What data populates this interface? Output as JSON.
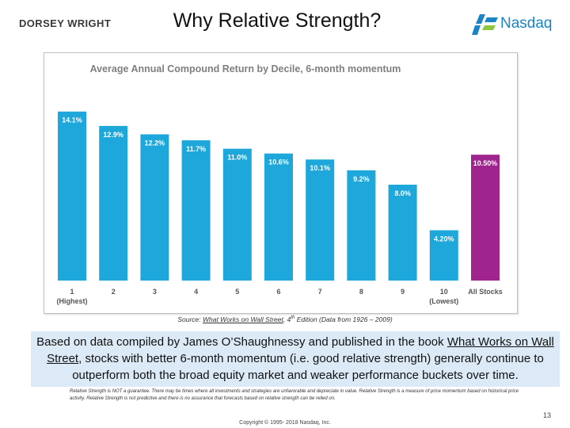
{
  "header": {
    "left_logo": "DORSEY WRIGHT",
    "title": "Why Relative Strength?",
    "right_logo": "Nasdaq"
  },
  "chart_data": {
    "type": "bar",
    "title": "Average Annual Compound Return by Decile, 6-month momentum",
    "categories": [
      "1 (Highest)",
      "2",
      "3",
      "4",
      "5",
      "6",
      "7",
      "8",
      "9",
      "10 (Lowest)",
      "All Stocks"
    ],
    "category_lines": [
      [
        "1",
        "(Highest)"
      ],
      [
        "2"
      ],
      [
        "3"
      ],
      [
        "4"
      ],
      [
        "5"
      ],
      [
        "6"
      ],
      [
        "7"
      ],
      [
        "8"
      ],
      [
        "9"
      ],
      [
        "10",
        "(Lowest)"
      ],
      [
        "All Stocks"
      ]
    ],
    "values": [
      14.1,
      12.9,
      12.2,
      11.7,
      11.0,
      10.6,
      10.1,
      9.2,
      8.0,
      4.2,
      10.5
    ],
    "value_labels": [
      "14.1%",
      "12.9%",
      "12.2%",
      "11.7%",
      "11.0%",
      "10.6%",
      "10.1%",
      "9.2%",
      "8.0%",
      "4.20%",
      "10.50%"
    ],
    "xlabel": "",
    "ylabel": "",
    "ylim": [
      0,
      16
    ],
    "grid": false,
    "legend": "none",
    "colors": {
      "decile": "#1ea7da",
      "all_stocks": "#a0248e",
      "label_text": "#ffffff",
      "title_text": "#7f7f7f",
      "axis_text": "#555555"
    }
  },
  "source": {
    "prefix": "Source: ",
    "book": "What Works on Wall Street",
    "edition": ", 4",
    "superscript": "th",
    "suffix": " Edition (Data from 1926 – 2009)"
  },
  "callout": {
    "part1": "Based on data compiled by James O’Shaughnessy and published in the book ",
    "book": "What Works on Wall Street",
    "part2": ", stocks with better 6-month momentum (i.e. good relative strength) generally continue to outperform both the broad equity market and weaker performance buckets over time.",
    "background": "#dbeaf6"
  },
  "disclaimer": "Relative Strength is NOT a guarantee. There may be times where all investments and strategies are unfavorable and depreciate in value. Relative Strength is a measure of price momentum based on historical price activity. Relative Strength is not predictive and there is no assurance that forecasts based on relative strength can be relied on.",
  "footer": {
    "copyright": "Copyright © 1995- 2018 Nasdaq, Inc.",
    "page_number": "13"
  }
}
